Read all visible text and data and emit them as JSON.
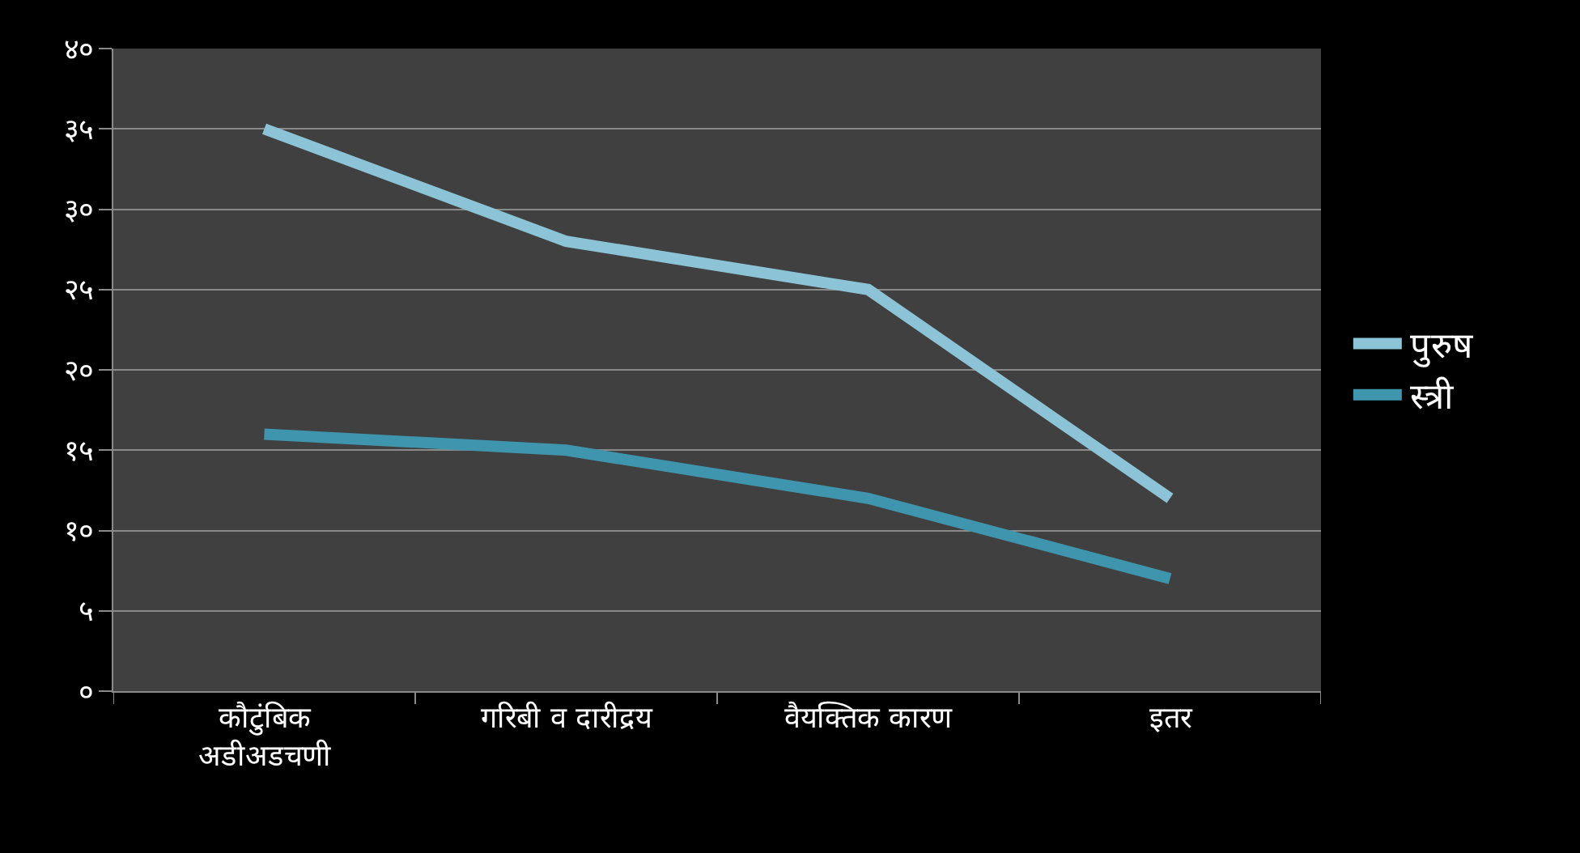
{
  "chart_data": {
    "type": "line",
    "categories": [
      "कौटुंबिक\nअडीअडचणी",
      "गरिबी व दारीद्रय",
      "वैयक्तिक कारण",
      "इतर"
    ],
    "series": [
      {
        "name": "पुरुष",
        "color": "#8cc3d6",
        "values": [
          35,
          28,
          25,
          12
        ]
      },
      {
        "name": "स्त्री",
        "color": "#3e95ad",
        "values": [
          16,
          15,
          12,
          7
        ]
      }
    ],
    "ylim": [
      0,
      40
    ],
    "yticks": [
      {
        "value": 0,
        "label": "०"
      },
      {
        "value": 5,
        "label": "५"
      },
      {
        "value": 10,
        "label": "१०"
      },
      {
        "value": 15,
        "label": "१५"
      },
      {
        "value": 20,
        "label": "२०"
      },
      {
        "value": 25,
        "label": "२५"
      },
      {
        "value": 30,
        "label": "३०"
      },
      {
        "value": 35,
        "label": "३५"
      },
      {
        "value": 40,
        "label": "४०"
      }
    ],
    "grid": "y",
    "legend": "right",
    "marker": "none",
    "line_style": "solid"
  }
}
